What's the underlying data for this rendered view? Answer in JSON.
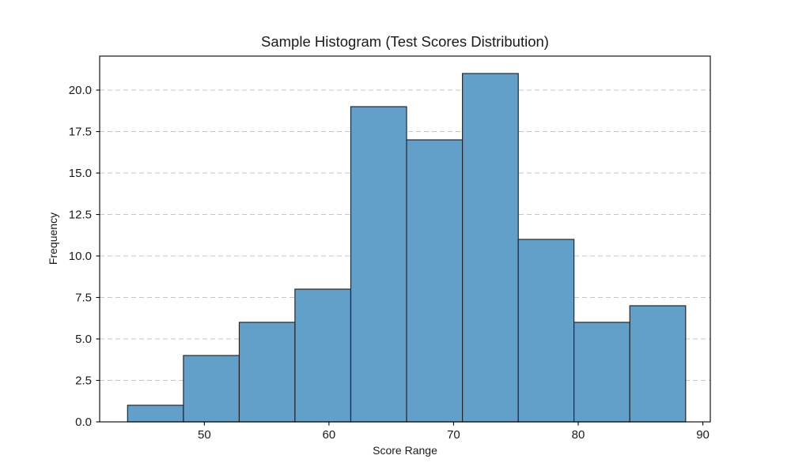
{
  "chart_data": {
    "type": "bar",
    "subtype": "histogram",
    "title": "Sample Histogram (Test Scores Distribution)",
    "xlabel": "Score Range",
    "ylabel": "Frequency",
    "bin_edges": [
      43.84,
      48.32,
      52.8,
      57.27,
      61.75,
      66.23,
      70.71,
      75.19,
      79.66,
      84.14,
      88.62
    ],
    "counts": [
      1,
      4,
      6,
      8,
      19,
      17,
      21,
      11,
      6,
      7
    ],
    "xlim": [
      41.6,
      90.6
    ],
    "ylim": [
      0,
      22.05
    ],
    "xticks": [
      50,
      60,
      70,
      80,
      90
    ],
    "xtick_labels": [
      "50",
      "60",
      "70",
      "80",
      "90"
    ],
    "yticks": [
      0.0,
      2.5,
      5.0,
      7.5,
      10.0,
      12.5,
      15.0,
      17.5,
      20.0
    ],
    "ytick_labels": [
      "0.0",
      "2.5",
      "5.0",
      "7.5",
      "10.0",
      "12.5",
      "15.0",
      "17.5",
      "20.0"
    ],
    "grid": "horizontal-dashed",
    "legend": "none",
    "colors": {
      "bar_fill": "#62a0ca",
      "bar_edge": "#26262e",
      "grid_line": "#c6c6c6",
      "axis_line": "#000000",
      "text": "#1a1a1a",
      "background": "#ffffff"
    }
  }
}
